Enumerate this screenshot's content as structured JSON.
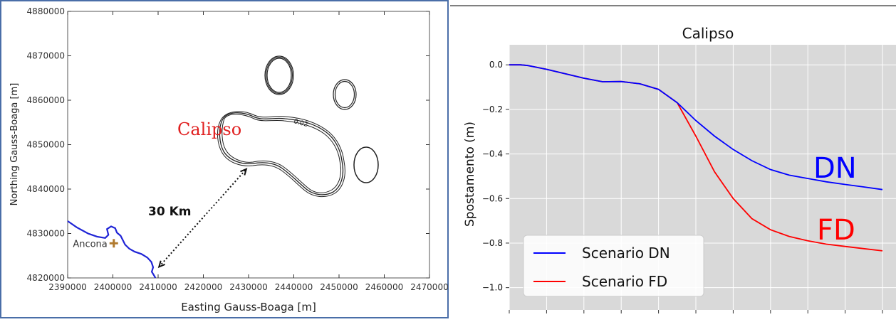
{
  "left_map": {
    "type": "scatter",
    "xlabel": "Easting Gauss-Boaga [m]",
    "ylabel": "Northing Gauss-Boaga [m]",
    "xlim": [
      2390000,
      2470000
    ],
    "ylim": [
      4820000,
      4880000
    ],
    "x_ticks": [
      "2390000",
      "2400000",
      "2410000",
      "2420000",
      "2430000",
      "2440000",
      "2450000",
      "2460000",
      "2470000"
    ],
    "y_ticks": [
      "4820000",
      "4830000",
      "4840000",
      "4850000",
      "4860000",
      "4870000",
      "4880000"
    ],
    "field_label": "Calipso",
    "contour_label": "0.02",
    "city_label": "Ancona",
    "city_point": [
      2400200,
      4827800
    ],
    "distance_label": "30 Km",
    "distance_arrow": [
      [
        2410200,
        4822500
      ],
      [
        2429500,
        4844500
      ]
    ],
    "coastline": [
      [
        2390000,
        4832800
      ],
      [
        2392000,
        4831400
      ],
      [
        2394500,
        4830000
      ],
      [
        2396500,
        4829300
      ],
      [
        2398300,
        4829000
      ],
      [
        2399000,
        4829700
      ],
      [
        2398700,
        4831000
      ],
      [
        2399600,
        4831600
      ],
      [
        2400500,
        4831200
      ],
      [
        2400900,
        4830200
      ],
      [
        2401700,
        4829500
      ],
      [
        2402200,
        4828500
      ],
      [
        2402700,
        4827500
      ],
      [
        2403600,
        4826600
      ],
      [
        2404800,
        4825900
      ],
      [
        2406300,
        4825400
      ],
      [
        2407600,
        4824600
      ],
      [
        2408500,
        4823600
      ],
      [
        2408900,
        4822400
      ],
      [
        2408600,
        4821400
      ],
      [
        2409200,
        4820400
      ],
      [
        2409400,
        4820000
      ]
    ],
    "colors": {
      "coastline": "#1f24d6",
      "contour": "#222222",
      "field_label": "#e02020",
      "city_marker": "#b07a2e",
      "frame": "#4a6ea8"
    }
  },
  "chart_data": {
    "type": "line",
    "title": "Calipso",
    "xlabel": "",
    "ylabel": "Spostamento (m)",
    "xlim": [
      0,
      10.4
    ],
    "ylim": [
      -1.1,
      0.09
    ],
    "y_ticks": [
      0.0,
      -0.2,
      -0.4,
      -0.6,
      -0.8,
      -1.0
    ],
    "y_tick_labels": [
      "0.0",
      "−0.2",
      "−0.4",
      "−0.6",
      "−0.8",
      "−1.0"
    ],
    "x_ticks": [
      0,
      1,
      2,
      3,
      4,
      5,
      6,
      7,
      8,
      9,
      10
    ],
    "grid": true,
    "background": "#d9d9d9",
    "legend_position": "bottom-left",
    "x": [
      0,
      0.3,
      0.5,
      1.0,
      1.5,
      2.0,
      2.5,
      3.0,
      3.5,
      4.0,
      4.5,
      5.0,
      5.5,
      6.0,
      6.5,
      7.0,
      7.5,
      8.0,
      8.5,
      9.0,
      9.5,
      10.0
    ],
    "series": [
      {
        "name": "Scenario DN",
        "color": "#0000ff",
        "values": [
          0.0,
          0.0,
          -0.003,
          -0.02,
          -0.04,
          -0.06,
          -0.076,
          -0.075,
          -0.085,
          -0.11,
          -0.17,
          -0.25,
          -0.32,
          -0.38,
          -0.43,
          -0.47,
          -0.495,
          -0.51,
          -0.525,
          -0.537,
          -0.548,
          -0.56
        ]
      },
      {
        "name": "Scenario FD",
        "color": "#ff0000",
        "values": [
          0.0,
          0.0,
          -0.003,
          -0.02,
          -0.04,
          -0.06,
          -0.076,
          -0.075,
          -0.085,
          -0.11,
          -0.17,
          -0.32,
          -0.48,
          -0.6,
          -0.69,
          -0.74,
          -0.77,
          -0.79,
          -0.805,
          -0.815,
          -0.825,
          -0.835
        ]
      }
    ],
    "annotations": [
      {
        "text": "DN",
        "color": "#0000ff"
      },
      {
        "text": "FD",
        "color": "#ff0000"
      }
    ]
  }
}
